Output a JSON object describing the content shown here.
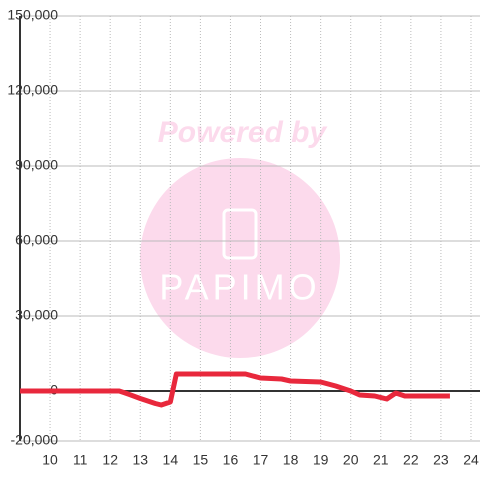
{
  "chart_data": {
    "type": "line",
    "watermark": {
      "title": "Powered by",
      "logo": "PAPIMO"
    },
    "x": [
      9,
      12.3,
      12.5,
      13,
      13.5,
      13.7,
      14,
      14.2,
      16.5,
      17,
      17.7,
      18,
      19,
      19.5,
      20,
      20.3,
      20.8,
      21.2,
      21.5,
      21.8,
      23.3
    ],
    "series": [
      {
        "color": "#e8283c",
        "values": [
          0,
          0,
          -800,
          -3000,
          -5000,
          -5600,
          -4400,
          6800,
          6800,
          5200,
          4800,
          4000,
          3600,
          2000,
          0,
          -1600,
          -2000,
          -3200,
          -800,
          -2000,
          -2000
        ]
      }
    ],
    "xlim": [
      9,
      24.3
    ],
    "xticks": [
      10,
      11,
      12,
      13,
      14,
      15,
      16,
      17,
      18,
      19,
      20,
      21,
      22,
      23,
      24
    ],
    "ylim": [
      -20000,
      150000
    ],
    "yticks": [
      {
        "value": -20000,
        "label": "-20,000"
      },
      0,
      {
        "value": 30000,
        "label": "30,000"
      },
      {
        "value": 60000,
        "label": "60,000"
      },
      {
        "value": 90000,
        "label": "90,000"
      },
      {
        "value": 120000,
        "label": "120,000"
      },
      {
        "value": 150000,
        "label": "150,000"
      }
    ],
    "grid": true
  }
}
